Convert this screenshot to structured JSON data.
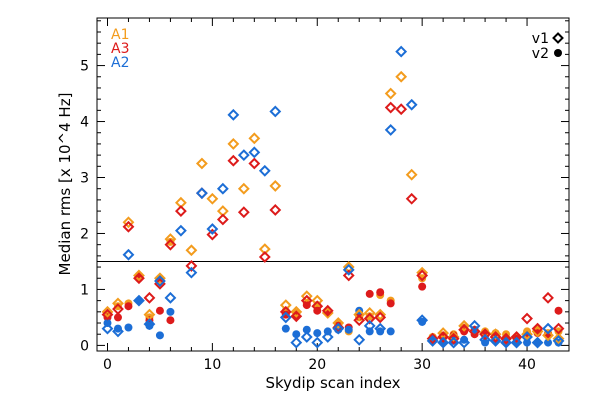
{
  "chart_data": {
    "type": "scatter",
    "xlabel": "Skydip scan index",
    "ylabel": "Median rms [x 10^4 Hz]",
    "xlim": [
      -1,
      44
    ],
    "ylim": [
      -0.1,
      5.85
    ],
    "x_ticks": [
      0,
      10,
      20,
      30,
      40
    ],
    "y_ticks": [
      0,
      1,
      2,
      3,
      4,
      5
    ],
    "threshold_line": 1.5,
    "series": [
      {
        "name": "A1",
        "color": "#f39c1e",
        "v1": [
          [
            0,
            0.6
          ],
          [
            1,
            0.75
          ],
          [
            2,
            2.2
          ],
          [
            3,
            1.25
          ],
          [
            4,
            0.55
          ],
          [
            5,
            1.2
          ],
          [
            6,
            1.9
          ],
          [
            7,
            2.55
          ],
          [
            8,
            1.7
          ],
          [
            9,
            3.25
          ],
          [
            10,
            2.62
          ],
          [
            11,
            2.4
          ],
          [
            12,
            3.6
          ],
          [
            13,
            2.8
          ],
          [
            14,
            3.7
          ],
          [
            15,
            1.72
          ],
          [
            16,
            2.85
          ],
          [
            17,
            0.72
          ],
          [
            18,
            0.6
          ],
          [
            19,
            0.88
          ],
          [
            20,
            0.8
          ],
          [
            21,
            0.58
          ],
          [
            22,
            0.4
          ],
          [
            23,
            1.4
          ],
          [
            24,
            0.55
          ],
          [
            25,
            0.58
          ],
          [
            26,
            0.55
          ],
          [
            27,
            4.5
          ],
          [
            28,
            4.8
          ],
          [
            29,
            3.05
          ],
          [
            30,
            1.3
          ],
          [
            31,
            0.12
          ],
          [
            32,
            0.22
          ],
          [
            33,
            0.15
          ],
          [
            34,
            0.35
          ],
          [
            35,
            0.25
          ],
          [
            36,
            0.22
          ],
          [
            37,
            0.2
          ],
          [
            38,
            0.12
          ],
          [
            39,
            0.15
          ],
          [
            40,
            0.2
          ],
          [
            41,
            0.25
          ],
          [
            42,
            0.18
          ],
          [
            43,
            0.12
          ]
        ],
        "v2": [
          [
            0,
            0.55
          ],
          [
            1,
            0.7
          ],
          [
            2,
            0.75
          ],
          [
            3,
            1.25
          ],
          [
            4,
            0.5
          ],
          [
            5,
            1.2
          ],
          [
            6,
            1.85
          ],
          [
            17,
            0.62
          ],
          [
            18,
            0.58
          ],
          [
            19,
            0.75
          ],
          [
            20,
            0.72
          ],
          [
            21,
            0.6
          ],
          [
            22,
            0.38
          ],
          [
            23,
            0.25
          ],
          [
            24,
            0.5
          ],
          [
            25,
            0.52
          ],
          [
            26,
            0.9
          ],
          [
            27,
            0.8
          ],
          [
            30,
            1.2
          ],
          [
            31,
            0.15
          ],
          [
            32,
            0.18
          ],
          [
            33,
            0.2
          ],
          [
            34,
            0.32
          ],
          [
            35,
            0.28
          ],
          [
            36,
            0.25
          ],
          [
            37,
            0.22
          ],
          [
            38,
            0.2
          ],
          [
            39,
            0.15
          ],
          [
            40,
            0.25
          ],
          [
            41,
            0.28
          ],
          [
            42,
            0.22
          ],
          [
            43,
            0.25
          ]
        ]
      },
      {
        "name": "A3",
        "color": "#dd1b1b",
        "v1": [
          [
            0,
            0.55
          ],
          [
            1,
            0.65
          ],
          [
            2,
            2.12
          ],
          [
            3,
            1.2
          ],
          [
            4,
            0.85
          ],
          [
            5,
            1.1
          ],
          [
            6,
            1.8
          ],
          [
            7,
            2.4
          ],
          [
            8,
            1.42
          ],
          [
            9,
            2.72
          ],
          [
            10,
            1.98
          ],
          [
            11,
            2.25
          ],
          [
            12,
            3.3
          ],
          [
            13,
            2.38
          ],
          [
            14,
            3.25
          ],
          [
            15,
            1.58
          ],
          [
            16,
            2.42
          ],
          [
            17,
            0.6
          ],
          [
            18,
            0.52
          ],
          [
            19,
            0.8
          ],
          [
            20,
            0.7
          ],
          [
            21,
            0.62
          ],
          [
            22,
            0.32
          ],
          [
            23,
            1.25
          ],
          [
            24,
            0.45
          ],
          [
            25,
            0.48
          ],
          [
            26,
            0.5
          ],
          [
            27,
            4.25
          ],
          [
            28,
            4.22
          ],
          [
            29,
            2.62
          ],
          [
            30,
            1.25
          ],
          [
            31,
            0.12
          ],
          [
            32,
            0.15
          ],
          [
            33,
            0.12
          ],
          [
            34,
            0.28
          ],
          [
            35,
            0.25
          ],
          [
            36,
            0.2
          ],
          [
            37,
            0.15
          ],
          [
            38,
            0.12
          ],
          [
            39,
            0.15
          ],
          [
            40,
            0.48
          ],
          [
            41,
            0.3
          ],
          [
            42,
            0.85
          ],
          [
            43,
            0.3
          ]
        ],
        "v2": [
          [
            0,
            0.5
          ],
          [
            1,
            0.5
          ],
          [
            2,
            0.7
          ],
          [
            3,
            1.2
          ],
          [
            4,
            0.45
          ],
          [
            5,
            0.62
          ],
          [
            6,
            0.45
          ],
          [
            17,
            0.55
          ],
          [
            18,
            0.52
          ],
          [
            19,
            0.72
          ],
          [
            20,
            0.62
          ],
          [
            21,
            0.62
          ],
          [
            22,
            0.35
          ],
          [
            23,
            0.32
          ],
          [
            24,
            0.52
          ],
          [
            25,
            0.92
          ],
          [
            26,
            0.95
          ],
          [
            27,
            0.75
          ],
          [
            30,
            1.05
          ],
          [
            31,
            0.12
          ],
          [
            32,
            0.15
          ],
          [
            33,
            0.18
          ],
          [
            34,
            0.25
          ],
          [
            35,
            0.2
          ],
          [
            36,
            0.18
          ],
          [
            37,
            0.15
          ],
          [
            38,
            0.12
          ],
          [
            39,
            0.12
          ],
          [
            40,
            0.2
          ],
          [
            41,
            0.22
          ],
          [
            42,
            0.2
          ],
          [
            43,
            0.62
          ]
        ]
      },
      {
        "name": "A2",
        "color": "#1c6ed6",
        "v1": [
          [
            0,
            0.3
          ],
          [
            1,
            0.25
          ],
          [
            2,
            1.62
          ],
          [
            3,
            0.8
          ],
          [
            4,
            0.38
          ],
          [
            5,
            1.15
          ],
          [
            6,
            0.85
          ],
          [
            7,
            2.05
          ],
          [
            8,
            1.3
          ],
          [
            9,
            2.72
          ],
          [
            10,
            2.08
          ],
          [
            11,
            2.8
          ],
          [
            12,
            4.12
          ],
          [
            13,
            3.4
          ],
          [
            14,
            3.45
          ],
          [
            15,
            3.12
          ],
          [
            16,
            4.18
          ],
          [
            17,
            0.5
          ],
          [
            18,
            0.05
          ],
          [
            19,
            0.15
          ],
          [
            20,
            0.05
          ],
          [
            21,
            0.15
          ],
          [
            22,
            0.3
          ],
          [
            23,
            1.35
          ],
          [
            24,
            0.1
          ],
          [
            25,
            0.35
          ],
          [
            26,
            0.3
          ],
          [
            27,
            3.85
          ],
          [
            28,
            5.25
          ],
          [
            29,
            4.3
          ],
          [
            30,
            0.45
          ],
          [
            31,
            0.08
          ],
          [
            32,
            0.05
          ],
          [
            33,
            0.05
          ],
          [
            34,
            0.05
          ],
          [
            35,
            0.35
          ],
          [
            36,
            0.1
          ],
          [
            37,
            0.08
          ],
          [
            38,
            0.05
          ],
          [
            39,
            0.05
          ],
          [
            40,
            0.15
          ],
          [
            41,
            0.05
          ],
          [
            42,
            0.3
          ],
          [
            43,
            0.08
          ]
        ],
        "v2": [
          [
            0,
            0.4
          ],
          [
            1,
            0.3
          ],
          [
            2,
            0.32
          ],
          [
            3,
            0.8
          ],
          [
            4,
            0.35
          ],
          [
            5,
            0.18
          ],
          [
            6,
            0.6
          ],
          [
            17,
            0.3
          ],
          [
            18,
            0.2
          ],
          [
            19,
            0.28
          ],
          [
            20,
            0.22
          ],
          [
            21,
            0.25
          ],
          [
            22,
            0.28
          ],
          [
            23,
            0.28
          ],
          [
            24,
            0.62
          ],
          [
            25,
            0.25
          ],
          [
            26,
            0.25
          ],
          [
            27,
            0.25
          ],
          [
            30,
            0.42
          ],
          [
            31,
            0.08
          ],
          [
            32,
            0.05
          ],
          [
            33,
            0.08
          ],
          [
            34,
            0.1
          ],
          [
            35,
            0.28
          ],
          [
            36,
            0.05
          ],
          [
            37,
            0.08
          ],
          [
            38,
            0.05
          ],
          [
            39,
            0.05
          ],
          [
            40,
            0.05
          ],
          [
            41,
            0.05
          ],
          [
            42,
            0.05
          ],
          [
            43,
            0.05
          ]
        ]
      }
    ],
    "marker_legend": [
      {
        "label": "v1",
        "shape": "open-diamond"
      },
      {
        "label": "v2",
        "shape": "filled-circle"
      }
    ],
    "series_legend_placement": "top-left",
    "marker_legend_placement": "top-right",
    "grid": false
  }
}
